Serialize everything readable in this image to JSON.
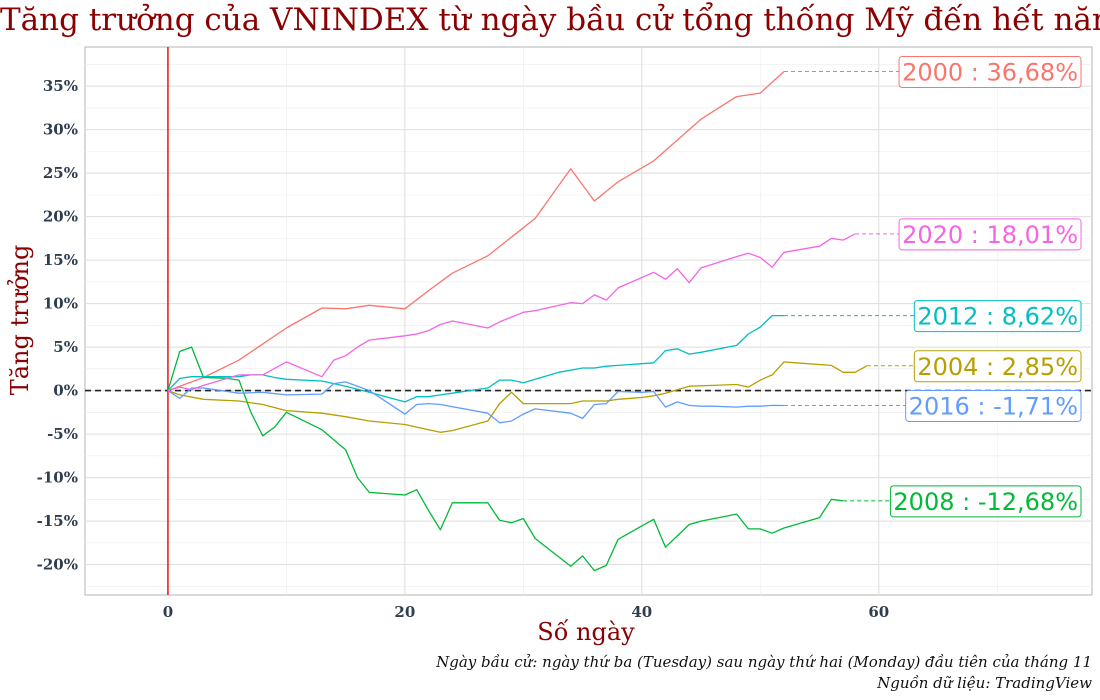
{
  "chart_data": {
    "type": "line",
    "title": "Tăng trưởng của VNINDEX từ ngày bầu cử tổng thống Mỹ đến hết năm",
    "xlabel": "Số ngày",
    "ylabel": "Tăng trưởng",
    "xlim": [
      -7,
      78
    ],
    "ylim": [
      -23.5,
      39.5
    ],
    "xticks": [
      0,
      20,
      40,
      60
    ],
    "yticks": [
      -20,
      -15,
      -10,
      -5,
      0,
      5,
      10,
      15,
      20,
      25,
      30,
      35
    ],
    "ytick_labels": [
      "-20%",
      "-15%",
      "-10%",
      "-5%",
      "0%",
      "5%",
      "10%",
      "15%",
      "20%",
      "25%",
      "30%",
      "35%"
    ],
    "grid": true,
    "vline_x": 0,
    "hline_y": 0,
    "series": [
      {
        "name": "2000",
        "color": "#f8766d",
        "label": "2000 : 36,68%",
        "x": [
          0,
          3,
          6,
          10,
          13,
          15,
          17,
          20,
          22,
          24,
          27,
          31,
          34,
          36,
          38,
          41,
          45,
          48,
          50,
          52
        ],
        "y": [
          0,
          1.5,
          3.5,
          7.2,
          9.5,
          9.4,
          9.8,
          9.4,
          11.5,
          13.5,
          15.5,
          19.8,
          25.5,
          21.8,
          24,
          26.4,
          31.2,
          33.8,
          34.2,
          36.68
        ]
      },
      {
        "name": "2004",
        "color": "#b79f00",
        "label": "2004 : 2,85%",
        "x": [
          0,
          1,
          3,
          6,
          8,
          10,
          13,
          15,
          17,
          20,
          22,
          23,
          24,
          27,
          28,
          29,
          30,
          31,
          34,
          35,
          36,
          37,
          38,
          40,
          41,
          42,
          44,
          46,
          48,
          49,
          50,
          51,
          52,
          53,
          56,
          57,
          58,
          59
        ],
        "y": [
          0,
          -0.5,
          -1,
          -1.2,
          -1.6,
          -2.3,
          -2.6,
          -3,
          -3.5,
          -3.9,
          -4.5,
          -4.8,
          -4.6,
          -3.5,
          -1.5,
          -0.2,
          -1.5,
          -1.5,
          -1.5,
          -1.2,
          -1.2,
          -1.2,
          -1,
          -0.8,
          -0.6,
          -0.3,
          0.5,
          0.6,
          0.7,
          0.4,
          1.2,
          1.8,
          3.3,
          3.2,
          2.9,
          2.1,
          2.1,
          2.85
        ]
      },
      {
        "name": "2008",
        "color": "#00ba38",
        "label": "2008 : -12,68%",
        "x": [
          0,
          1,
          2,
          3,
          5,
          6,
          7,
          8,
          9,
          10,
          13,
          15,
          16,
          17,
          20,
          21,
          22,
          23,
          24,
          27,
          28,
          29,
          30,
          31,
          34,
          35,
          36,
          37,
          38,
          41,
          42,
          44,
          45,
          48,
          49,
          50,
          51,
          52,
          55,
          56,
          57
        ],
        "y": [
          0,
          4.5,
          5,
          1.5,
          1.4,
          1.2,
          -2.5,
          -5.2,
          -4.2,
          -2.5,
          -4.5,
          -6.8,
          -10,
          -11.7,
          -12,
          -11.4,
          -13.8,
          -16,
          -12.9,
          -12.9,
          -14.9,
          -15.2,
          -14.7,
          -17,
          -20.2,
          -19,
          -20.7,
          -20.1,
          -17.1,
          -14.8,
          -18,
          -15.4,
          -15,
          -14.2,
          -15.9,
          -15.9,
          -16.4,
          -15.8,
          -14.6,
          -12.5,
          -12.68
        ]
      },
      {
        "name": "2012",
        "color": "#00bfc4",
        "label": "2012 : 8,62%",
        "x": [
          0,
          1,
          2,
          3,
          6,
          7,
          8,
          9,
          10,
          13,
          15,
          17,
          20,
          21,
          22,
          23,
          24,
          27,
          28,
          29,
          30,
          33,
          35,
          36,
          37,
          38,
          41,
          42,
          43,
          44,
          45,
          48,
          49,
          50,
          51,
          52
        ],
        "y": [
          0,
          1.4,
          1.6,
          1.6,
          1.6,
          1.8,
          1.8,
          1.5,
          1.3,
          1.1,
          0.5,
          -0.2,
          -1.3,
          -0.7,
          -0.7,
          -0.5,
          -0.3,
          0.3,
          1.2,
          1.2,
          0.9,
          2.1,
          2.6,
          2.6,
          2.8,
          2.9,
          3.2,
          4.6,
          4.8,
          4.2,
          4.4,
          5.2,
          6.5,
          7.3,
          8.62,
          8.62
        ]
      },
      {
        "name": "2016",
        "color": "#619cff",
        "label": "2016 : -1,71%",
        "x": [
          0,
          1,
          2,
          3,
          6,
          8,
          10,
          13,
          14,
          15,
          17,
          20,
          21,
          22,
          23,
          27,
          28,
          29,
          30,
          31,
          34,
          35,
          36,
          37,
          38,
          40,
          41,
          42,
          43,
          44,
          45,
          46,
          48,
          49,
          50,
          51,
          52
        ],
        "y": [
          0,
          -0.9,
          0.3,
          0.3,
          -0.3,
          -0.2,
          -0.5,
          -0.4,
          0.8,
          1,
          0,
          -2.7,
          -1.6,
          -1.5,
          -1.6,
          -2.6,
          -3.7,
          -3.5,
          -2.7,
          -2.1,
          -2.6,
          -3.2,
          -1.6,
          -1.5,
          -0.1,
          -0.2,
          -0.1,
          -1.9,
          -1.3,
          -1.7,
          -1.8,
          -1.8,
          -1.9,
          -1.8,
          -1.8,
          -1.7,
          -1.71
        ]
      },
      {
        "name": "2020",
        "color": "#f564e3",
        "label": "2020 : 18,01%",
        "x": [
          0,
          1,
          2,
          3,
          6,
          8,
          10,
          13,
          14,
          15,
          16,
          17,
          20,
          21,
          22,
          23,
          24,
          27,
          28,
          30,
          31,
          34,
          35,
          36,
          37,
          38,
          41,
          42,
          43,
          44,
          45,
          48,
          49,
          50,
          51,
          52,
          55,
          56,
          57,
          58
        ],
        "y": [
          0,
          0.4,
          0.1,
          0.6,
          1.8,
          1.8,
          3.3,
          1.6,
          3.5,
          4,
          5,
          5.8,
          6.3,
          6.5,
          6.9,
          7.6,
          8,
          7.2,
          7.9,
          9,
          9.2,
          10.1,
          10,
          11,
          10.4,
          11.8,
          13.6,
          12.8,
          14,
          12.4,
          14.1,
          15.4,
          15.8,
          15.3,
          14.2,
          15.9,
          16.6,
          17.5,
          17.3,
          18.01
        ]
      }
    ]
  },
  "captions": {
    "line1": "Ngày bầu cử: ngày thứ ba (Tuesday) sau ngày thứ hai (Monday) đầu tiên của tháng 11",
    "line2": "Nguồn dữ liệu: TradingView"
  }
}
